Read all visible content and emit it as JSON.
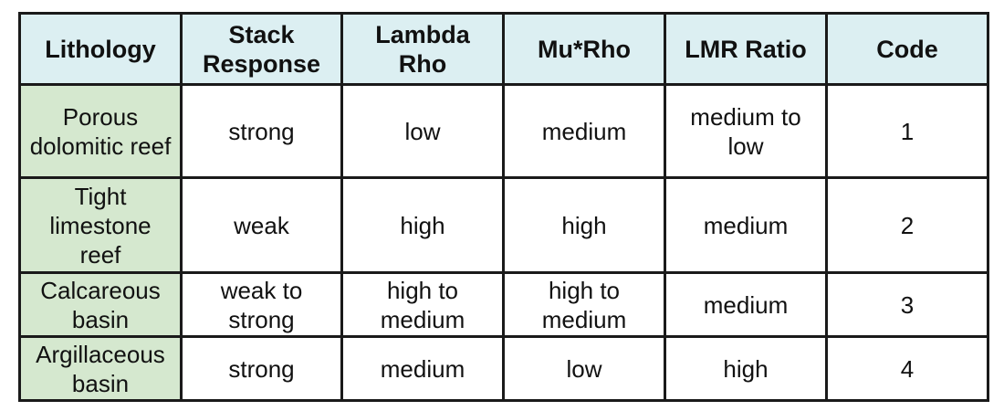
{
  "table": {
    "headers": [
      "Lithology",
      "Stack\nResponse",
      "Lambda\nRho",
      "Mu*Rho",
      "LMR Ratio",
      "Code"
    ],
    "rows": [
      [
        "Porous\ndolomitic reef",
        "strong",
        "low",
        "medium",
        "medium to\nlow",
        "1"
      ],
      [
        "Tight\nlimestone\nreef",
        "weak",
        "high",
        "high",
        "medium",
        "2"
      ],
      [
        "Calcareous\nbasin",
        "weak to\nstrong",
        "high to\nmedium",
        "high to\nmedium",
        "medium",
        "3"
      ],
      [
        "Argillaceous\nbasin",
        "strong",
        "medium",
        "low",
        "high",
        "4"
      ]
    ]
  },
  "colors": {
    "header_bg": "#dceff2",
    "lithology_bg": "#d5e8cf",
    "border": "#1a1a1a"
  }
}
